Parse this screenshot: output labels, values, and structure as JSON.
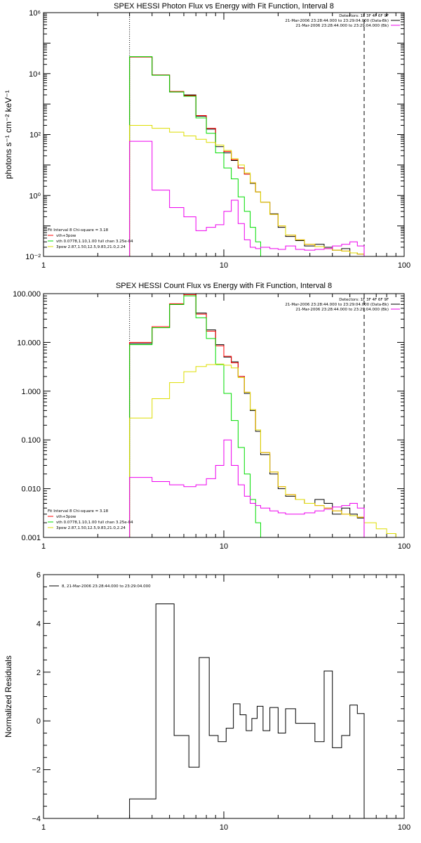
{
  "chart_data": [
    {
      "type": "step",
      "title": "SPEX HESSI Photon Flux vs Energy with Fit Function, Interval 8",
      "ylabel": "photons s⁻¹ cm⁻² keV⁻¹",
      "xlabel": "",
      "xscale": "log",
      "yscale": "log",
      "xlim": [
        1,
        100
      ],
      "ylim": [
        0.01,
        1000000
      ],
      "x_ticks": [
        {
          "v": 1,
          "t": "1"
        },
        {
          "v": 10,
          "t": "10"
        },
        {
          "v": 100,
          "t": "100"
        }
      ],
      "y_ticks": [
        {
          "v": 0.01,
          "t": "10⁻²"
        },
        {
          "v": 1,
          "t": "10⁰"
        },
        {
          "v": 100,
          "t": "10²"
        },
        {
          "v": 10000,
          "t": "10⁴"
        },
        {
          "v": 1000000,
          "t": "10⁶"
        }
      ],
      "vlines": [
        {
          "x": 3,
          "style": "dotted"
        },
        {
          "x": 60,
          "style": "dashed"
        }
      ],
      "legend_header": [
        "Detectors: 1F 3F 4F 6F 9F",
        "21-Mar-2006 23:28:44.000 to 23:29:04.000 (Data-Bk)",
        "21-Mar-2006 23:28:44.000 to 23:29:04.000 (Bk)"
      ],
      "legend_fit": [
        "Fit Interval  8   Chi-square = 3.18",
        "vth+3pow",
        "vth 0.0778,1.10,1.00  full chan 3.25e-04",
        "3pow  2.87,1.50,12.5,9.83,21.0,2.24"
      ],
      "edges": [
        3,
        4,
        5,
        6,
        7,
        8,
        9,
        10,
        11,
        12,
        13,
        14,
        15,
        16,
        18,
        20,
        22,
        25,
        28,
        32,
        36,
        40,
        45,
        50,
        55,
        60
      ],
      "series": [
        {
          "name": "Data-Bk",
          "color": "#000000",
          "values": [
            35000,
            9000,
            2500,
            2000,
            400,
            150,
            40,
            25,
            14,
            8,
            5,
            2.5,
            1.3,
            0.6,
            0.25,
            0.09,
            0.045,
            0.033,
            0.022,
            0.025,
            0.02,
            0.016,
            0.018,
            0.013,
            0.012
          ]
        },
        {
          "name": "vth+3pow",
          "color": "#ff0000",
          "values": [
            35000,
            9000,
            2600,
            1900,
            420,
            160,
            45,
            28,
            15,
            8,
            5,
            2.6,
            1.3,
            0.6,
            0.24,
            0.1,
            0.05,
            0.035,
            0.025,
            0.021,
            0.018,
            0.016,
            0.015,
            0.013,
            0.012
          ]
        },
        {
          "name": "vth",
          "color": "#00dd00",
          "values": [
            36000,
            8800,
            2500,
            1800,
            350,
            110,
            25,
            8,
            3.5,
            0.9,
            0.3,
            0.09,
            0.03,
            0.01
          ]
        },
        {
          "name": "3pow",
          "color": "#dddd00",
          "values": [
            200,
            160,
            120,
            90,
            70,
            55,
            45,
            30,
            16,
            10,
            5.5,
            2.6,
            1.3,
            0.6,
            0.24,
            0.1,
            0.05,
            0.035,
            0.025,
            0.021,
            0.018,
            0.016,
            0.015,
            0.013,
            0.012
          ]
        },
        {
          "name": "Bk",
          "color": "#ee00ee",
          "values": [
            60,
            1.5,
            0.4,
            0.2,
            0.07,
            0.09,
            0.11,
            0.3,
            0.7,
            0.12,
            0.035,
            0.02,
            0.018,
            0.02,
            0.018,
            0.017,
            0.022,
            0.017,
            0.016,
            0.017,
            0.018,
            0.022,
            0.025,
            0.03,
            0.022
          ]
        }
      ]
    },
    {
      "type": "step",
      "title": "SPEX HESSI Count Flux vs Energy with Fit Function, Interval 8",
      "ylabel": "",
      "xlabel": "",
      "xscale": "log",
      "yscale": "log",
      "xlim": [
        1,
        100
      ],
      "ylim": [
        0.001,
        100
      ],
      "x_ticks": [
        {
          "v": 1,
          "t": "1"
        },
        {
          "v": 10,
          "t": "10"
        },
        {
          "v": 100,
          "t": "100"
        }
      ],
      "y_ticks": [
        {
          "v": 0.001,
          "t": "0.001"
        },
        {
          "v": 0.01,
          "t": "0.010"
        },
        {
          "v": 0.1,
          "t": "0.100"
        },
        {
          "v": 1,
          "t": "1.000"
        },
        {
          "v": 10,
          "t": "10.000"
        },
        {
          "v": 100,
          "t": "100.000"
        }
      ],
      "vlines": [
        {
          "x": 3,
          "style": "dotted"
        },
        {
          "x": 60,
          "style": "dashed"
        }
      ],
      "legend_header": [
        "Detectors: 1F 3F 4F 6F 9F",
        "21-Mar-2006 23:28:44.000 to 23:29:04.000 (Data-Bk)",
        "21-Mar-2006 23:28:44.000 to 23:29:04.000 (Bk)"
      ],
      "legend_fit": [
        "Fit Interval  8   Chi-square = 3.18",
        "vth+3pow",
        "vth 0.0778,1.10,1.00  full chan 3.25e-04",
        "3pow  2.87,1.50,12.5,9.83,21.0,2.24"
      ],
      "edges": [
        3,
        4,
        5,
        6,
        7,
        8,
        9,
        10,
        11,
        12,
        13,
        14,
        15,
        16,
        18,
        20,
        22,
        25,
        28,
        32,
        36,
        40,
        45,
        50,
        55,
        60,
        70,
        80,
        90
      ],
      "series": [
        {
          "name": "Data-Bk",
          "color": "#000000",
          "values": [
            9.5,
            20,
            60,
            100,
            40,
            18,
            9,
            5,
            4,
            2,
            0.9,
            0.4,
            0.15,
            0.05,
            0.02,
            0.01,
            0.007,
            0.006,
            0.005,
            0.006,
            0.005,
            0.003,
            0.004,
            0.003,
            0.0025
          ]
        },
        {
          "name": "vth+3pow",
          "color": "#ff0000",
          "values": [
            10,
            21,
            62,
            95,
            38,
            17,
            8.5,
            5.2,
            3.8,
            2,
            0.95,
            0.42,
            0.16,
            0.055,
            0.022,
            0.011,
            0.0075,
            0.006,
            0.005,
            0.0045,
            0.004,
            0.0035,
            0.003,
            0.0028,
            0.0026
          ]
        },
        {
          "name": "vth",
          "color": "#00dd00",
          "values": [
            9,
            20,
            60,
            90,
            32,
            12,
            3.5,
            0.9,
            0.25,
            0.07,
            0.02,
            0.006,
            0.002,
            0.001
          ]
        },
        {
          "name": "3pow",
          "color": "#dddd00",
          "values": [
            0.28,
            0.7,
            1.5,
            2.5,
            3.2,
            3.5,
            3.6,
            3.4,
            3,
            1.9,
            0.95,
            0.42,
            0.16,
            0.055,
            0.022,
            0.011,
            0.0075,
            0.006,
            0.005,
            0.0045,
            0.004,
            0.0035,
            0.003,
            0.0028,
            0.0026,
            0.002,
            0.0015,
            0.0012
          ]
        },
        {
          "name": "Bk",
          "color": "#ee00ee",
          "values": [
            0.017,
            0.014,
            0.012,
            0.011,
            0.012,
            0.016,
            0.03,
            0.1,
            0.03,
            0.012,
            0.007,
            0.005,
            0.0045,
            0.004,
            0.0035,
            0.0032,
            0.003,
            0.003,
            0.0032,
            0.0035,
            0.0038,
            0.0042,
            0.0045,
            0.005,
            0.004
          ]
        }
      ]
    },
    {
      "type": "step",
      "title": "",
      "ylabel": "Normalized Residuals",
      "xlabel": "",
      "xscale": "log",
      "yscale": "linear",
      "xlim": [
        1,
        100
      ],
      "ylim": [
        -4,
        6
      ],
      "x_ticks": [
        {
          "v": 1,
          "t": "1"
        },
        {
          "v": 10,
          "t": "10"
        },
        {
          "v": 100,
          "t": "100"
        }
      ],
      "y_ticks": [
        {
          "v": -4,
          "t": "−4"
        },
        {
          "v": -2,
          "t": "−2"
        },
        {
          "v": 0,
          "t": "0"
        },
        {
          "v": 2,
          "t": "2"
        },
        {
          "v": 4,
          "t": "4"
        },
        {
          "v": 6,
          "t": "6"
        }
      ],
      "vlines": [],
      "legend_header": [
        "8, 21-Mar-2006 23:28:44.000 to 23:29:04.000"
      ],
      "legend_fit": [],
      "edges": [
        3,
        4.2,
        5.3,
        6.4,
        7.3,
        8.3,
        9.3,
        10.3,
        11.3,
        12.3,
        13.3,
        14.3,
        15.3,
        16.5,
        18,
        20,
        22,
        25,
        28,
        32,
        36,
        40,
        45,
        50,
        55,
        60
      ],
      "series": [
        {
          "name": "8",
          "color": "#000000",
          "values": [
            -3.2,
            4.8,
            -0.6,
            -1.9,
            2.6,
            -0.6,
            -0.85,
            -0.3,
            0.7,
            0.25,
            -0.4,
            0.1,
            0.6,
            -0.4,
            0.55,
            -0.5,
            0.5,
            -0.1,
            -0.1,
            -0.85,
            2.05,
            -1.1,
            -0.6,
            0.65,
            0.3
          ]
        }
      ]
    }
  ]
}
